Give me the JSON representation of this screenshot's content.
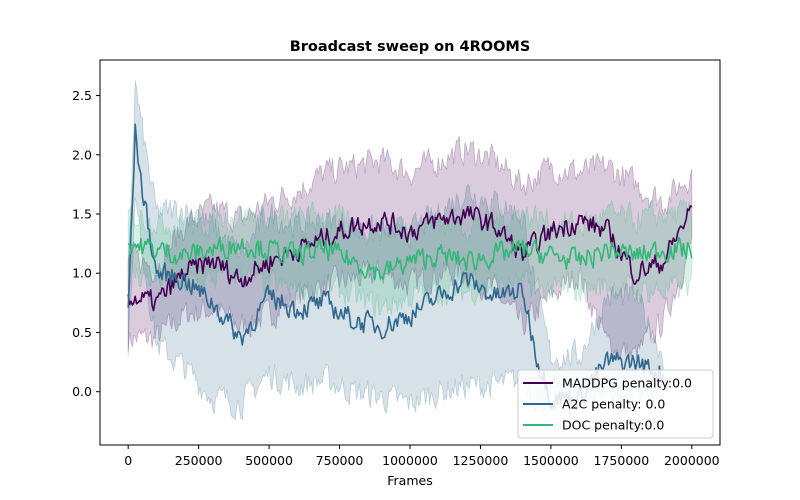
{
  "chart_data": {
    "type": "line",
    "title": "Broadcast sweep on 4ROOMS",
    "xlabel": "Frames",
    "ylabel": "",
    "xlim": [
      -100000,
      2100000
    ],
    "ylim": [
      -0.45,
      2.8
    ],
    "xticks": [
      0,
      250000,
      500000,
      750000,
      1000000,
      1250000,
      1500000,
      1750000,
      2000000
    ],
    "xtick_labels": [
      "0",
      "250000",
      "500000",
      "750000",
      "1000000",
      "1250000",
      "1500000",
      "1750000",
      "2000000"
    ],
    "yticks": [
      0.0,
      0.5,
      1.0,
      1.5,
      2.0,
      2.5
    ],
    "ytick_labels": [
      "0.0",
      "0.5",
      "1.0",
      "1.5",
      "2.0",
      "2.5"
    ],
    "grid": false,
    "legend_position": "lower-right",
    "series": [
      {
        "name": "MADDPG penalty:0.0",
        "color": "#440154",
        "x": [
          0,
          100000,
          200000,
          300000,
          400000,
          500000,
          600000,
          700000,
          800000,
          900000,
          1000000,
          1100000,
          1200000,
          1300000,
          1400000,
          1500000,
          1600000,
          1700000,
          1800000,
          1900000,
          2000000
        ],
        "y": [
          0.8,
          0.75,
          1.0,
          1.1,
          0.95,
          1.1,
          1.2,
          1.3,
          1.4,
          1.45,
          1.35,
          1.45,
          1.5,
          1.4,
          1.15,
          1.35,
          1.45,
          1.35,
          1.0,
          1.1,
          1.55
        ],
        "band_low": [
          0.45,
          0.45,
          0.65,
          0.7,
          0.55,
          0.65,
          0.8,
          0.9,
          0.95,
          1.0,
          0.9,
          1.0,
          1.0,
          0.85,
          0.55,
          0.8,
          1.0,
          0.4,
          0.3,
          0.6,
          1.25
        ],
        "band_high": [
          1.15,
          1.05,
          1.4,
          1.55,
          1.45,
          1.6,
          1.7,
          1.85,
          1.9,
          1.95,
          1.85,
          1.95,
          2.05,
          1.95,
          1.75,
          1.9,
          1.85,
          1.9,
          1.75,
          1.6,
          1.85
        ]
      },
      {
        "name": "A2C penalty: 0.0",
        "color": "#31688e",
        "x": [
          0,
          25000,
          50000,
          100000,
          200000,
          300000,
          400000,
          500000,
          600000,
          700000,
          800000,
          900000,
          1000000,
          1100000,
          1200000,
          1300000,
          1400000,
          1450000,
          1500000,
          1600000,
          1700000,
          1800000,
          1900000
        ],
        "y": [
          0.7,
          2.2,
          1.7,
          1.0,
          0.95,
          0.75,
          0.45,
          0.8,
          0.7,
          0.75,
          0.6,
          0.55,
          0.65,
          0.8,
          0.95,
          0.8,
          0.85,
          0.3,
          -0.05,
          -0.05,
          0.25,
          0.25,
          0.15
        ],
        "band_low": [
          0.4,
          1.6,
          1.2,
          0.4,
          0.2,
          -0.05,
          -0.1,
          0.15,
          0.05,
          0.1,
          0.0,
          -0.05,
          -0.1,
          0.0,
          0.05,
          0.05,
          0.1,
          -0.05,
          -0.1,
          -0.1,
          0.0,
          0.0,
          0.0
        ],
        "band_high": [
          1.0,
          2.6,
          2.2,
          1.5,
          1.55,
          1.4,
          1.15,
          1.5,
          1.4,
          1.45,
          1.4,
          1.35,
          1.35,
          1.5,
          1.7,
          1.6,
          1.5,
          0.8,
          0.3,
          0.3,
          0.8,
          0.8,
          0.3
        ]
      },
      {
        "name": "DOC penalty:0.0",
        "color": "#35b779",
        "x": [
          0,
          100000,
          200000,
          300000,
          400000,
          500000,
          600000,
          700000,
          800000,
          900000,
          1000000,
          1100000,
          1200000,
          1300000,
          1400000,
          1500000,
          1600000,
          1700000,
          1800000,
          1900000,
          2000000
        ],
        "y": [
          1.25,
          1.2,
          1.15,
          1.2,
          1.25,
          1.2,
          1.15,
          1.2,
          1.1,
          1.0,
          1.1,
          1.15,
          1.1,
          1.15,
          1.2,
          1.15,
          1.1,
          1.2,
          1.15,
          1.2,
          1.2
        ],
        "band_low": [
          1.0,
          0.95,
          0.9,
          0.95,
          1.0,
          0.9,
          0.85,
          0.9,
          0.8,
          0.7,
          0.8,
          0.85,
          0.85,
          0.9,
          0.9,
          0.85,
          0.85,
          0.9,
          0.85,
          0.85,
          0.9
        ],
        "band_high": [
          1.5,
          1.45,
          1.4,
          1.45,
          1.5,
          1.45,
          1.45,
          1.5,
          1.4,
          1.35,
          1.4,
          1.45,
          1.4,
          1.45,
          1.5,
          1.45,
          1.4,
          1.5,
          1.45,
          1.5,
          1.5
        ]
      }
    ]
  }
}
